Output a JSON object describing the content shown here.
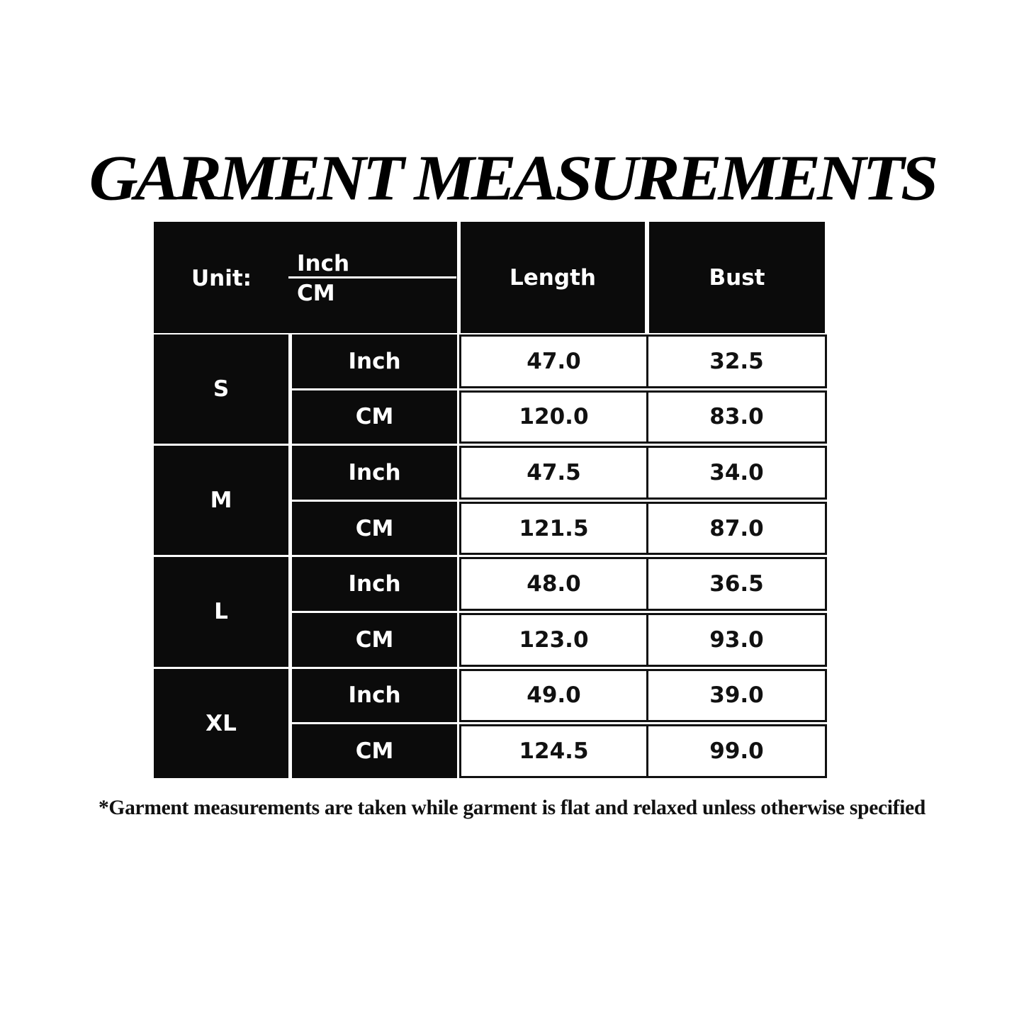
{
  "title": "GARMENT MEASUREMENTS",
  "table": {
    "unit_label": "Unit:",
    "unit_top": "Inch",
    "unit_bottom": "CM",
    "columns": [
      "Length",
      "Bust"
    ],
    "sizes": [
      {
        "size": "S",
        "rows": [
          {
            "unit": "Inch",
            "length": "47.0",
            "bust": "32.5"
          },
          {
            "unit": "CM",
            "length": "120.0",
            "bust": "83.0"
          }
        ]
      },
      {
        "size": "M",
        "rows": [
          {
            "unit": "Inch",
            "length": "47.5",
            "bust": "34.0"
          },
          {
            "unit": "CM",
            "length": "121.5",
            "bust": "87.0"
          }
        ]
      },
      {
        "size": "L",
        "rows": [
          {
            "unit": "Inch",
            "length": "48.0",
            "bust": "36.5"
          },
          {
            "unit": "CM",
            "length": "123.0",
            "bust": "93.0"
          }
        ]
      },
      {
        "size": "XL",
        "rows": [
          {
            "unit": "Inch",
            "length": "49.0",
            "bust": "39.0"
          },
          {
            "unit": "CM",
            "length": "124.5",
            "bust": "99.0"
          }
        ]
      }
    ]
  },
  "footnote": "*Garment measurements are taken while garment is flat and relaxed unless otherwise specified"
}
